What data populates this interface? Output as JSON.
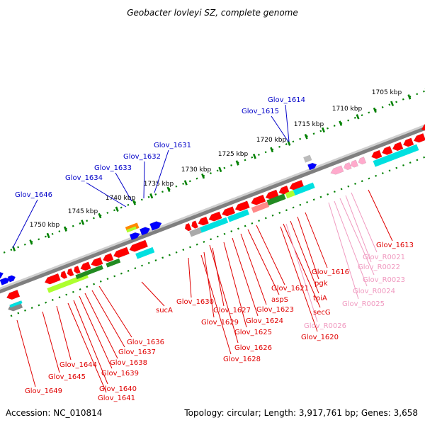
{
  "title": "Geobacter lovleyi SZ, complete genome",
  "footer": {
    "accession": "Accession: NC_010814",
    "topology": "Topology: circular; Length: 3,917,761 bp; Genes: 3,658"
  },
  "ruler_labels": [
    "1705 kbp",
    "1710 kbp",
    "1715 kbp",
    "1720 kbp",
    "1725 kbp",
    "1730 kbp",
    "1735 kbp",
    "1740 kbp",
    "1745 kbp",
    "1750 kbp"
  ],
  "labels_top": [
    "Glov_1614",
    "Glov_1615",
    "Glov_1631",
    "Glov_1632",
    "Glov_1633",
    "Glov_1634",
    "Glov_1646"
  ],
  "labels_bottom_red": [
    "Glov_1613",
    "Glov_1616",
    "pgk",
    "tpiA",
    "secG",
    "Glov_1620",
    "Glov_1621",
    "aspS",
    "Glov_1623",
    "Glov_1624",
    "Glov_1625",
    "Glov_1626",
    "Glov_1627",
    "Glov_1628",
    "Glov_1629",
    "Glov_1630",
    "sucA",
    "Glov_1636",
    "Glov_1637",
    "Glov_1638",
    "Glov_1639",
    "Glov_1640",
    "Glov_1641",
    "Glov_1644",
    "Glov_1645",
    "Glov_1649"
  ],
  "labels_bottom_pink": [
    "Glov_R0021",
    "Glov_R0022",
    "Glov_R0023",
    "Glov_R0024",
    "Glov_R0025",
    "Glov_R0026"
  ],
  "colors": {
    "gene_red": "#ff0000",
    "gene_blue": "#0000ff",
    "trna_pink": "#ffaacc",
    "cog_cyan": "#00e0e0",
    "cog_green": "#228b22",
    "cog_lime": "#adff2f",
    "backbone": "#8c8c8c",
    "ruler": "#008000",
    "label_blue": "#0000c8",
    "label_red": "#e00000",
    "label_pink": "#f09ac0"
  }
}
